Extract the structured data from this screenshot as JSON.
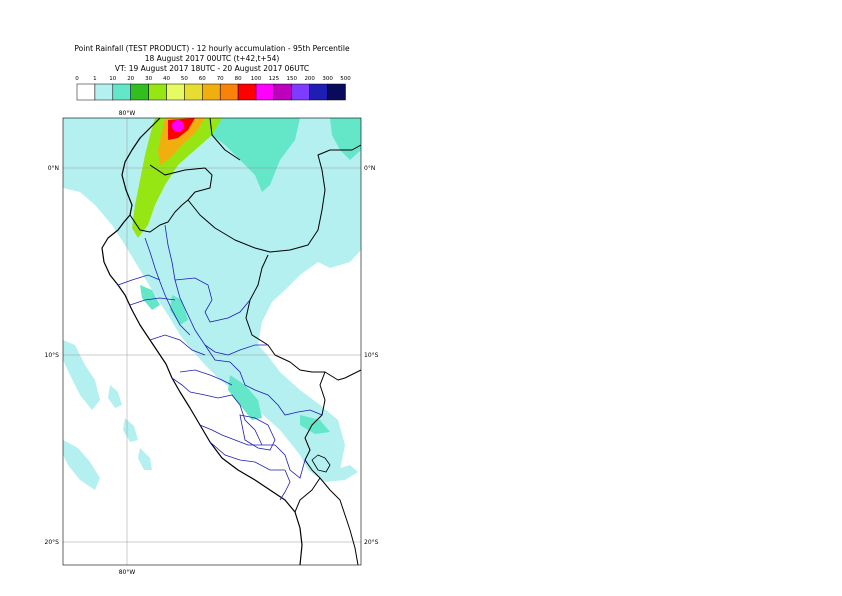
{
  "title": {
    "line1": "Point Rainfall (TEST PRODUCT) - 12 hourly accumulation - 95th Percentile",
    "line2": "18 August 2017 00UTC (t+42,t+54)",
    "line3": "VT: 19 August 2017 18UTC - 20 August 2017 06UTC"
  },
  "legend": {
    "thresholds": [
      "0",
      "1",
      "10",
      "20",
      "30",
      "40",
      "50",
      "60",
      "70",
      "80",
      "100",
      "125",
      "150",
      "200",
      "300",
      "500"
    ],
    "colors": [
      "#ffffff",
      "#b4f0f0",
      "#64e6c8",
      "#32be1e",
      "#96e614",
      "#e6fa64",
      "#e6dc32",
      "#f0af0f",
      "#fa820a",
      "#ff0000",
      "#ff00ff",
      "#be00be",
      "#7d3cff",
      "#1e1eb4",
      "#0a0a5a"
    ]
  },
  "map": {
    "lat_labels": {
      "north": "0°N",
      "south_10": "10°S",
      "south_20": "20°S"
    },
    "lon_label": "80°W",
    "land_color": "#ffffff",
    "sea_color": "#ffffff",
    "rain_light": "#b4f0f0",
    "rain_moderate": "#64e6c8",
    "rain_heavy": "#96e614",
    "rain_extreme": "#ff00ff"
  }
}
